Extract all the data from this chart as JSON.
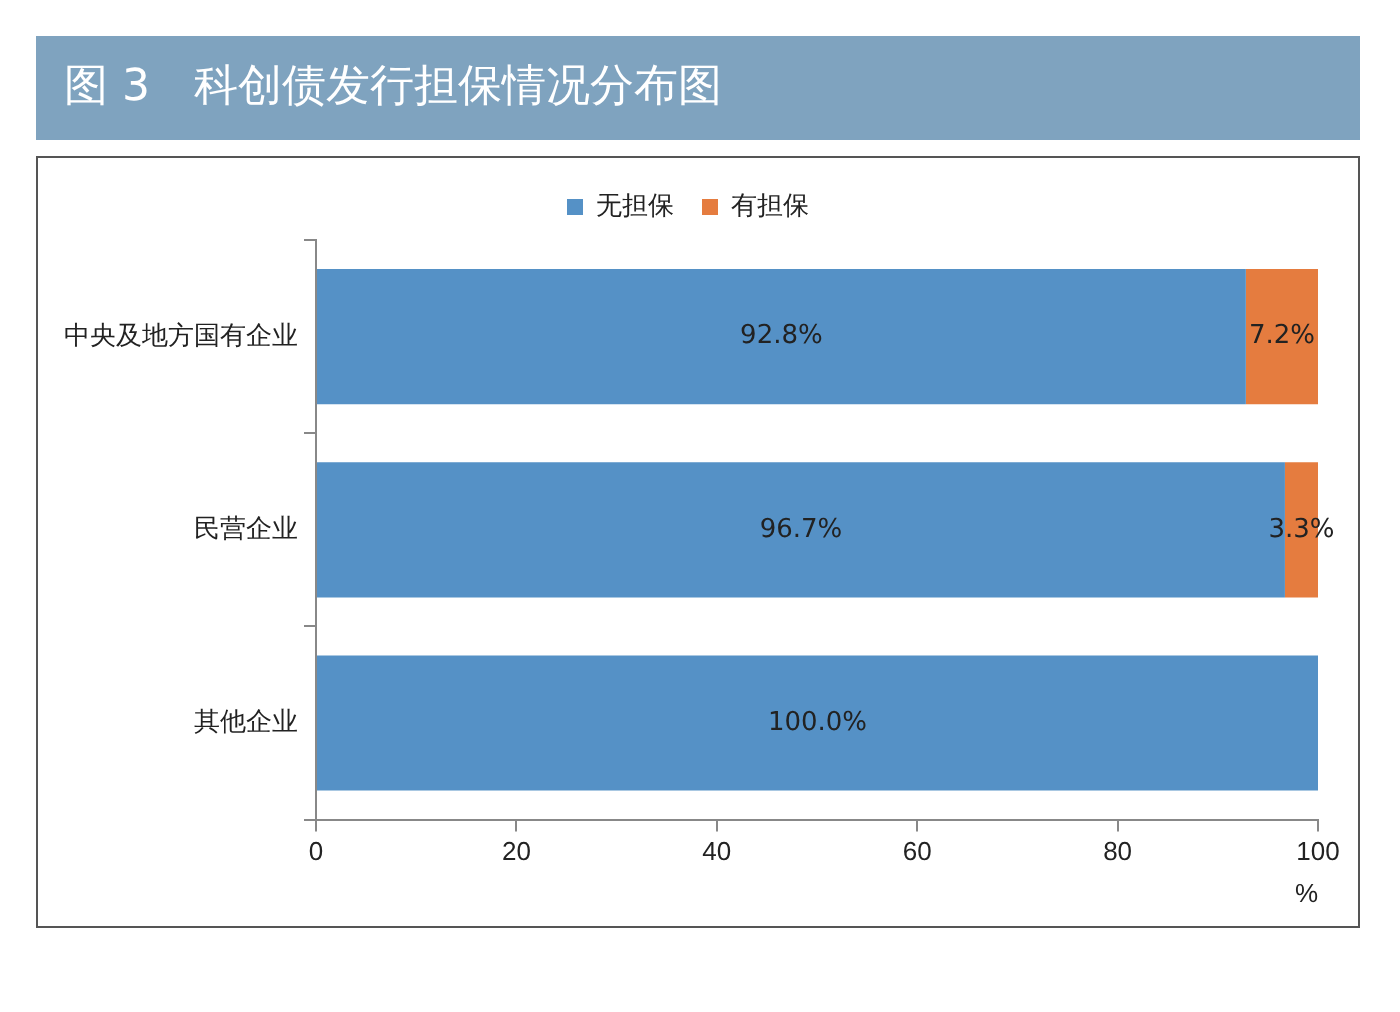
{
  "chart_data": {
    "type": "bar",
    "orientation": "horizontal",
    "stacked": true,
    "title": "图 3　科创债发行担保情况分布图",
    "xlabel": "%",
    "categories": [
      "中央及地方国有企业",
      "民营企业",
      "其他企业"
    ],
    "series": [
      {
        "name": "无担保",
        "color": "#5591c6",
        "values": [
          92.8,
          96.7,
          100.0
        ],
        "value_labels": [
          "92.8%",
          "96.7%",
          "100.0%"
        ]
      },
      {
        "name": "有担保",
        "color": "#e57c3f",
        "values": [
          7.2,
          3.3,
          0
        ],
        "value_labels": [
          "7.2%",
          "3.3%",
          null
        ]
      }
    ],
    "xlim": [
      0,
      100
    ],
    "xticks": [
      0,
      20,
      40,
      60,
      80,
      100
    ],
    "grid": false,
    "legend": "top"
  }
}
